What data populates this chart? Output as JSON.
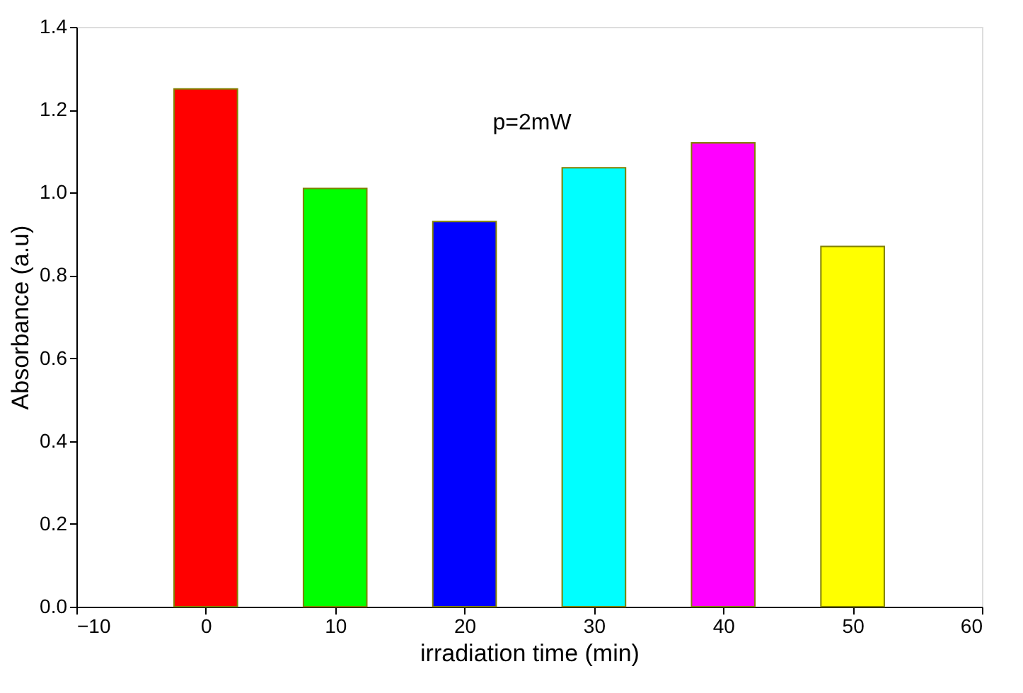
{
  "chart_data": {
    "type": "bar",
    "xlabel": "irradiation time (min)",
    "ylabel": "Absorbance (a.u)",
    "x": [
      0,
      10,
      20,
      30,
      40,
      50
    ],
    "values": [
      1.25,
      1.01,
      0.93,
      1.06,
      1.12,
      0.87
    ],
    "colors": [
      "#ff0000",
      "#00ff00",
      "#0000ff",
      "#00ffff",
      "#ff00ff",
      "#ffff00"
    ],
    "xlim": [
      -10,
      60
    ],
    "xticks": [
      -10,
      0,
      10,
      20,
      30,
      40,
      50,
      60
    ],
    "ylim": [
      0,
      1.4
    ],
    "yticks": [
      {
        "value": 0,
        "label": "0.0"
      },
      {
        "value": 0.2,
        "label": "0.2"
      },
      {
        "value": 0.4,
        "label": "0.4"
      },
      {
        "value": 0.6,
        "label": "0.6"
      },
      {
        "value": 0.8,
        "label": "0.8"
      },
      {
        "value": 1.0,
        "label": "1.0"
      },
      {
        "value": 1.2,
        "label": "1.2"
      },
      {
        "value": 1.4,
        "label": "1.4"
      }
    ],
    "annotations": [
      "p=2mW"
    ],
    "grid": false,
    "legend": false
  }
}
